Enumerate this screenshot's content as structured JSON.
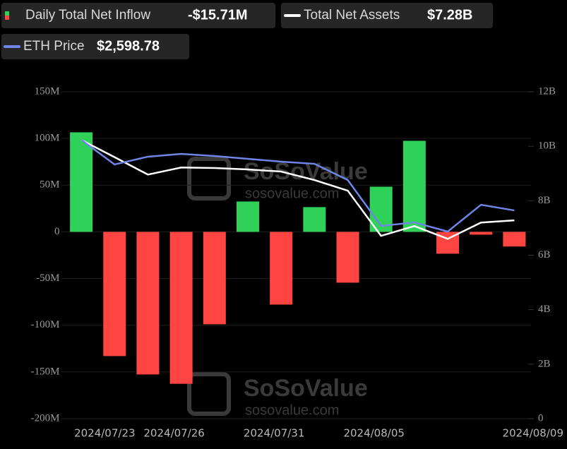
{
  "chart_data": {
    "type": "bar",
    "legend": [
      {
        "name": "Daily Total Net Inflow",
        "value_label": "-$15.71M"
      },
      {
        "name": "Total Net Assets",
        "value_label": "$7.28B"
      },
      {
        "name": "ETH Price",
        "value_label": "$2,598.78"
      }
    ],
    "watermark": {
      "brand": "SoSoValue",
      "url": "sosovalue.com"
    },
    "categories": [
      "2024/07/23",
      null,
      null,
      "2024/07/26",
      null,
      null,
      "2024/07/31",
      null,
      null,
      "2024/08/05",
      null,
      null,
      null,
      "2024/08/09"
    ],
    "series": [
      {
        "name": "Daily Total Net Inflow",
        "type": "bar",
        "positive_color": "#2fd158",
        "negative_color": "#ff4541",
        "values": [
          106.6,
          -133,
          -152.7,
          -162.7,
          -99,
          32.5,
          -77.9,
          26.5,
          -54.4,
          48.4,
          97.5,
          -23.4,
          -3,
          -15.71
        ]
      },
      {
        "name": "Total Net Assets",
        "type": "line",
        "axis": "y2",
        "color": "#ffffff",
        "values": [
          10.23,
          9.6,
          8.96,
          9.22,
          9.2,
          9.15,
          9.07,
          8.76,
          8.37,
          6.71,
          7.07,
          6.6,
          7.2,
          7.28
        ]
      },
      {
        "name": "ETH Price",
        "type": "line",
        "axis": "none",
        "color": "#6f86e8",
        "values": [
          3480,
          3172,
          3269,
          3304,
          3277,
          3242,
          3207,
          3180,
          2978,
          2405,
          2449,
          2335,
          2669,
          2598.78
        ]
      }
    ],
    "ylim": [
      -200,
      150
    ],
    "yticks": [
      {
        "value": -200,
        "label": "-200M"
      },
      {
        "value": -150,
        "label": "-150M"
      },
      {
        "value": -100,
        "label": "-100M"
      },
      {
        "value": -50,
        "label": "-50M"
      },
      0,
      {
        "value": 50,
        "label": "50M"
      },
      {
        "value": 100,
        "label": "100M"
      },
      {
        "value": 150,
        "label": "150M"
      }
    ],
    "y2lim": [
      0,
      12
    ],
    "y2ticks": [
      0,
      {
        "value": 2,
        "label": "2B"
      },
      {
        "value": 4,
        "label": "4B"
      },
      {
        "value": 6,
        "label": "6B"
      },
      {
        "value": 8,
        "label": "8B"
      },
      {
        "value": 10,
        "label": "10B"
      },
      {
        "value": 12,
        "label": "12B"
      }
    ],
    "grid": true
  }
}
